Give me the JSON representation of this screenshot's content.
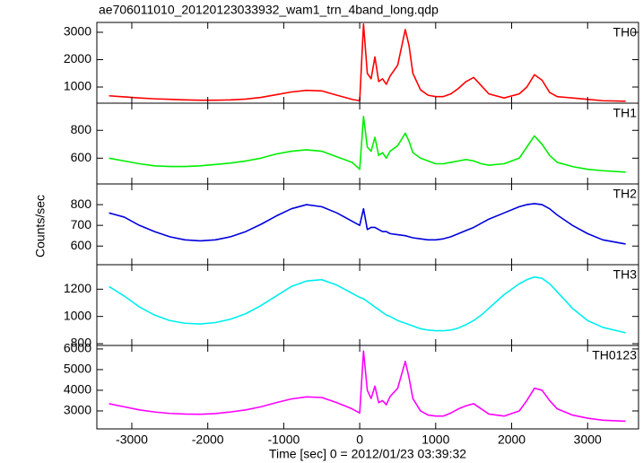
{
  "chart_data": [
    {
      "type": "line",
      "title": "ae706011010_20120123033932_wam1_trn_4band_long.qdp",
      "label": "TH0",
      "color": "#ff0000",
      "x": [
        -3300,
        -3100,
        -2900,
        -2700,
        -2500,
        -2300,
        -2100,
        -1900,
        -1700,
        -1500,
        -1300,
        -1100,
        -900,
        -700,
        -500,
        -300,
        -100,
        0,
        50,
        100,
        150,
        200,
        250,
        300,
        350,
        400,
        500,
        600,
        650,
        700,
        800,
        900,
        1000,
        1100,
        1200,
        1300,
        1400,
        1500,
        1600,
        1700,
        1900,
        2100,
        2200,
        2300,
        2400,
        2500,
        2600,
        2800,
        3000,
        3200,
        3500
      ],
      "values": [
        680,
        640,
        600,
        570,
        550,
        530,
        520,
        520,
        530,
        560,
        620,
        720,
        820,
        880,
        860,
        700,
        550,
        500,
        3300,
        1500,
        1300,
        2100,
        1200,
        1300,
        1100,
        1400,
        1800,
        3100,
        2500,
        1500,
        900,
        700,
        650,
        650,
        750,
        950,
        1200,
        1350,
        1050,
        750,
        600,
        750,
        1000,
        1450,
        1250,
        800,
        650,
        600,
        550,
        500,
        480
      ],
      "xlim": [
        -3460,
        3670
      ],
      "xticks": [
        -3000,
        -2000,
        -1000,
        0,
        1000,
        2000,
        3000
      ],
      "ylim": [
        410,
        3360
      ],
      "yticks": [
        1000,
        2000,
        3000
      ]
    },
    {
      "type": "line",
      "label": "TH1",
      "color": "#00ee00",
      "x": [
        -3300,
        -3100,
        -2900,
        -2700,
        -2500,
        -2300,
        -2100,
        -1900,
        -1700,
        -1500,
        -1300,
        -1100,
        -900,
        -700,
        -500,
        -300,
        -100,
        0,
        50,
        100,
        150,
        200,
        250,
        300,
        350,
        400,
        500,
        600,
        650,
        700,
        800,
        900,
        1000,
        1100,
        1200,
        1300,
        1400,
        1500,
        1600,
        1700,
        1900,
        2100,
        2200,
        2300,
        2400,
        2500,
        2600,
        2800,
        3000,
        3200,
        3500
      ],
      "values": [
        600,
        580,
        560,
        545,
        540,
        540,
        545,
        555,
        565,
        580,
        600,
        630,
        650,
        660,
        650,
        610,
        570,
        520,
        900,
        680,
        650,
        750,
        620,
        640,
        600,
        650,
        690,
        780,
        720,
        640,
        600,
        580,
        560,
        560,
        570,
        580,
        590,
        580,
        560,
        550,
        560,
        600,
        680,
        760,
        700,
        620,
        570,
        540,
        520,
        510,
        500
      ],
      "xlim": [
        -3460,
        3670
      ],
      "xticks": [
        -3000,
        -2000,
        -1000,
        0,
        1000,
        2000,
        3000
      ],
      "ylim": [
        415,
        995
      ],
      "yticks": [
        600,
        800
      ]
    },
    {
      "type": "line",
      "label": "TH2",
      "color": "#0000dd",
      "ylabel": "Counts/sec",
      "x": [
        -3300,
        -3100,
        -2900,
        -2700,
        -2500,
        -2300,
        -2100,
        -1900,
        -1700,
        -1500,
        -1300,
        -1100,
        -900,
        -700,
        -500,
        -300,
        -100,
        0,
        50,
        100,
        150,
        200,
        250,
        300,
        350,
        400,
        500,
        600,
        650,
        700,
        800,
        900,
        1000,
        1100,
        1200,
        1300,
        1400,
        1500,
        1600,
        1700,
        1900,
        2100,
        2200,
        2300,
        2400,
        2500,
        2600,
        2800,
        3000,
        3200,
        3500
      ],
      "values": [
        760,
        740,
        700,
        670,
        645,
        630,
        625,
        630,
        645,
        670,
        705,
        745,
        780,
        800,
        790,
        760,
        720,
        700,
        780,
        680,
        690,
        690,
        680,
        670,
        670,
        660,
        655,
        650,
        645,
        640,
        635,
        630,
        630,
        635,
        645,
        660,
        675,
        690,
        710,
        730,
        760,
        790,
        800,
        805,
        800,
        780,
        750,
        700,
        660,
        630,
        610
      ],
      "xlim": [
        -3460,
        3670
      ],
      "xticks": [
        -3000,
        -2000,
        -1000,
        0,
        1000,
        2000,
        3000
      ],
      "ylim": [
        510,
        900
      ],
      "yticks": [
        600,
        700,
        800
      ]
    },
    {
      "type": "line",
      "label": "TH3",
      "color": "#00eeee",
      "x": [
        -3300,
        -3100,
        -2900,
        -2700,
        -2500,
        -2300,
        -2100,
        -1900,
        -1700,
        -1500,
        -1300,
        -1100,
        -900,
        -700,
        -500,
        -300,
        -100,
        0,
        50,
        100,
        150,
        200,
        250,
        300,
        350,
        400,
        500,
        600,
        650,
        700,
        800,
        900,
        1000,
        1100,
        1200,
        1300,
        1400,
        1500,
        1600,
        1700,
        1900,
        2100,
        2200,
        2300,
        2400,
        2500,
        2600,
        2800,
        3000,
        3200,
        3500
      ],
      "values": [
        1220,
        1150,
        1070,
        1010,
        970,
        950,
        945,
        955,
        980,
        1020,
        1080,
        1150,
        1220,
        1260,
        1270,
        1230,
        1170,
        1140,
        1130,
        1110,
        1090,
        1070,
        1050,
        1030,
        1010,
        1000,
        970,
        950,
        940,
        930,
        910,
        900,
        895,
        895,
        900,
        915,
        940,
        970,
        1010,
        1060,
        1160,
        1240,
        1270,
        1290,
        1280,
        1240,
        1180,
        1060,
        970,
        920,
        880
      ],
      "xlim": [
        -3460,
        3670
      ],
      "xticks": [
        -3000,
        -2000,
        -1000,
        0,
        1000,
        2000,
        3000
      ],
      "ylim": [
        787,
        1380
      ],
      "yticks": [
        800,
        1000,
        1200
      ]
    },
    {
      "type": "line",
      "label": "TH0123",
      "color": "#ff00ff",
      "xlabel": "Time [sec] 0 = 2012/01/23 03:39:32",
      "x": [
        -3300,
        -3100,
        -2900,
        -2700,
        -2500,
        -2300,
        -2100,
        -1900,
        -1700,
        -1500,
        -1300,
        -1100,
        -900,
        -700,
        -500,
        -300,
        -100,
        0,
        50,
        100,
        150,
        200,
        250,
        300,
        350,
        400,
        500,
        600,
        650,
        700,
        800,
        900,
        1000,
        1100,
        1200,
        1300,
        1400,
        1500,
        1600,
        1700,
        1900,
        2100,
        2200,
        2300,
        2400,
        2500,
        2600,
        2800,
        3000,
        3200,
        3500
      ],
      "values": [
        3350,
        3200,
        3050,
        2950,
        2880,
        2850,
        2840,
        2870,
        2950,
        3050,
        3200,
        3400,
        3580,
        3680,
        3650,
        3400,
        3100,
        2900,
        5900,
        4000,
        3600,
        4200,
        3400,
        3500,
        3300,
        3700,
        4100,
        5400,
        4600,
        3600,
        3000,
        2800,
        2750,
        2750,
        2900,
        3100,
        3250,
        3350,
        3100,
        2850,
        2750,
        3000,
        3500,
        4100,
        4000,
        3500,
        3100,
        2800,
        2650,
        2550,
        2500
      ],
      "xlim": [
        -3460,
        3670
      ],
      "xticks": [
        -3000,
        -2000,
        -1000,
        0,
        1000,
        2000,
        3000
      ],
      "ylim": [
        2130,
        6170
      ],
      "yticks": [
        3000,
        4000,
        5000,
        6000
      ]
    }
  ]
}
